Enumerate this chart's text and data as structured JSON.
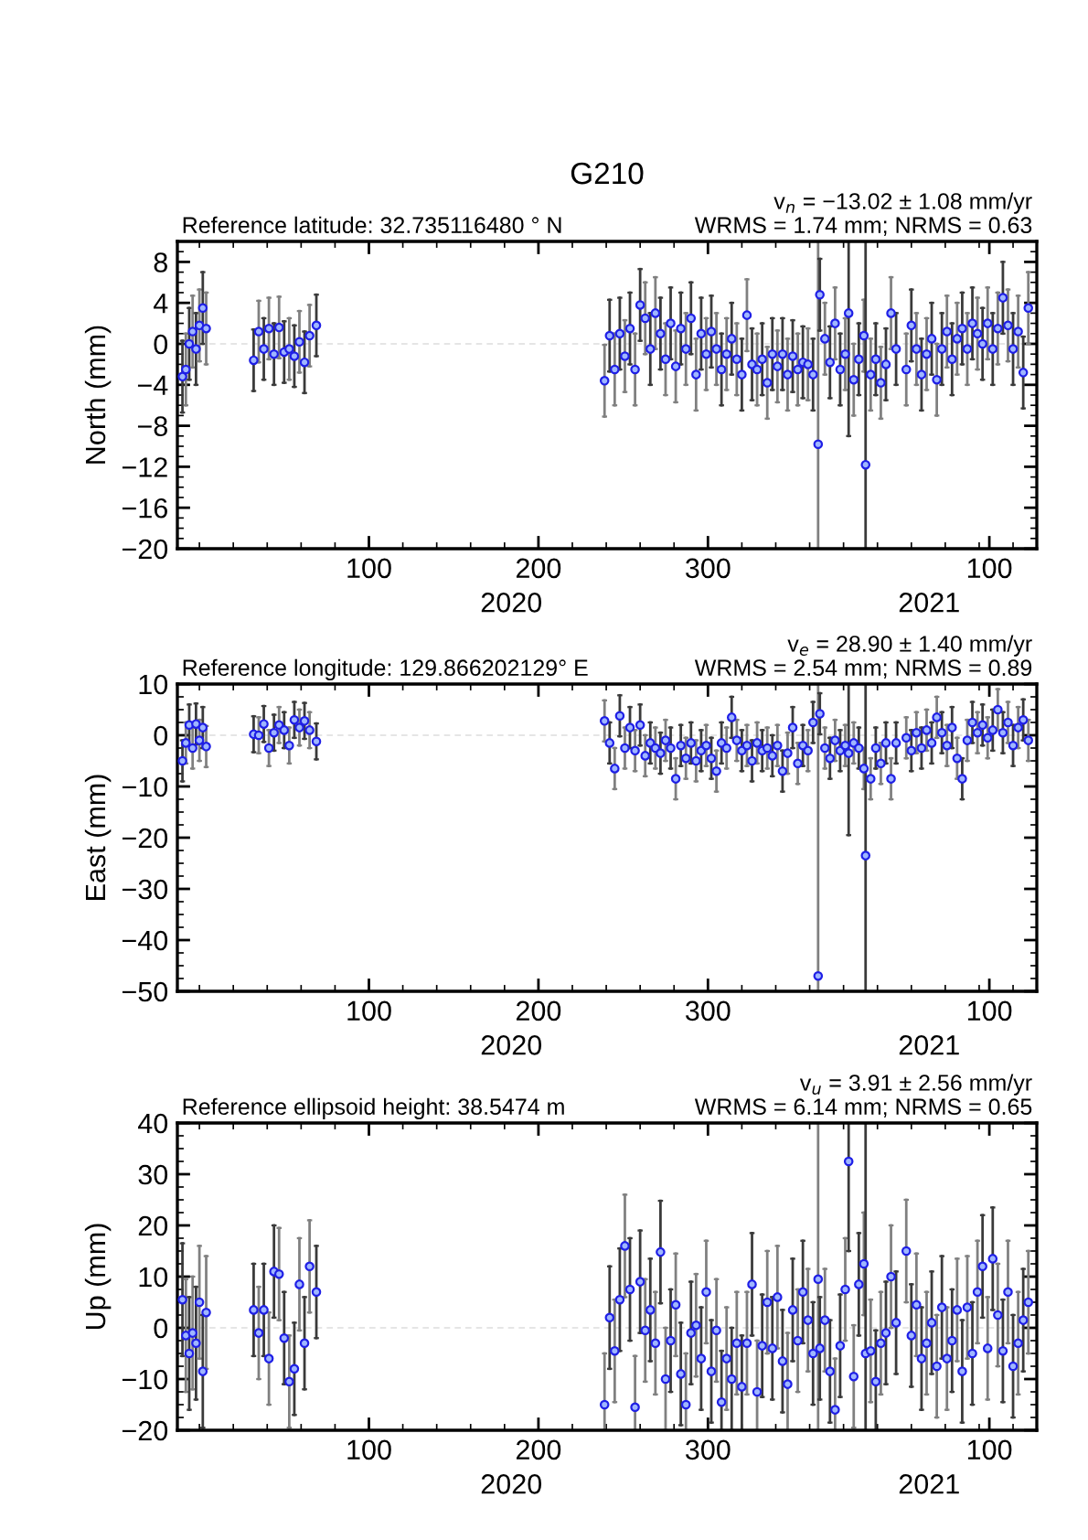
{
  "chart_data": [
    {
      "type": "scatter",
      "title": "G210",
      "subtitle": "Reference latitude: 32.735116480 ° N",
      "ylabel": "North (mm)",
      "marker": "circle",
      "annotations": [
        "v$_{n}$ = −13.02 ± 1.08 mm/yr",
        "WRMS = 1.74 mm; NRMS = 0.63",
        "2020",
        "2021"
      ],
      "xlim": [
        "2019-12-18",
        "2021-05-08"
      ],
      "xticks": [
        {
          "value": "2020-04-09",
          "label": "100"
        },
        {
          "value": "2020-07-18",
          "label": "200"
        },
        {
          "value": "2020-10-26",
          "label": "300"
        },
        {
          "value": "2021-04-10",
          "label": "100"
        }
      ],
      "ylim": [
        -20,
        10
      ],
      "yticks": [
        8,
        4,
        0,
        -4,
        -8,
        -12,
        -16,
        -20
      ],
      "ref_lines": [
        {
          "axis": "y",
          "value": 0,
          "color": "#dddddd",
          "line_style": "dashed"
        }
      ],
      "x": [
        "2019-12-21",
        "2019-12-23",
        "2019-12-25",
        "2019-12-27",
        "2019-12-29",
        "2019-12-31",
        "2020-01-02",
        "2020-01-04",
        "2020-02-01",
        "2020-02-04",
        "2020-02-07",
        "2020-02-10",
        "2020-02-13",
        "2020-02-16",
        "2020-02-19",
        "2020-02-22",
        "2020-02-25",
        "2020-02-28",
        "2020-03-02",
        "2020-03-05",
        "2020-03-09",
        "2020-08-26",
        "2020-08-29",
        "2020-09-01",
        "2020-09-04",
        "2020-09-07",
        "2020-09-10",
        "2020-09-13",
        "2020-09-16",
        "2020-09-19",
        "2020-09-22",
        "2020-09-25",
        "2020-09-28",
        "2020-10-01",
        "2020-10-04",
        "2020-10-07",
        "2020-10-10",
        "2020-10-13",
        "2020-10-16",
        "2020-10-19",
        "2020-10-22",
        "2020-10-25",
        "2020-10-28",
        "2020-10-31",
        "2020-11-03",
        "2020-11-06",
        "2020-11-09",
        "2020-11-12",
        "2020-11-15",
        "2020-11-18",
        "2020-11-21",
        "2020-11-24",
        "2020-11-27",
        "2020-11-30",
        "2020-12-03",
        "2020-12-06",
        "2020-12-09",
        "2020-12-12",
        "2020-12-15",
        "2020-12-18",
        "2020-12-21",
        "2020-12-24",
        "2020-12-27",
        "2020-12-30",
        "2020-12-31",
        "2021-01-03",
        "2021-01-06",
        "2021-01-09",
        "2021-01-12",
        "2021-01-15",
        "2021-01-17",
        "2021-01-20",
        "2021-01-23",
        "2021-01-26",
        "2021-01-27",
        "2021-01-30",
        "2021-02-02",
        "2021-02-05",
        "2021-02-08",
        "2021-02-11",
        "2021-02-14",
        "2021-02-20",
        "2021-02-23",
        "2021-02-26",
        "2021-03-01",
        "2021-03-04",
        "2021-03-07",
        "2021-03-10",
        "2021-03-13",
        "2021-03-16",
        "2021-03-19",
        "2021-03-22",
        "2021-03-25",
        "2021-03-28",
        "2021-03-31",
        "2021-04-03",
        "2021-04-06",
        "2021-04-09",
        "2021-04-12",
        "2021-04-15",
        "2021-04-18",
        "2021-04-21",
        "2021-04-24",
        "2021-04-27",
        "2021-04-30",
        "2021-05-03"
      ],
      "series": [
        {
          "color": "#1f1fe6",
          "values": [
            -3.2,
            -2.5,
            0,
            1.2,
            -0.5,
            1.8,
            3.5,
            1.5,
            -1.6,
            1.2,
            -0.5,
            1.5,
            -1.0,
            1.6,
            -0.8,
            -0.5,
            -1.2,
            0.2,
            -1.8,
            0.8,
            1.8,
            -3.6,
            0.8,
            -2.5,
            1.0,
            -1.2,
            1.5,
            -2.5,
            3.8,
            2.5,
            -0.5,
            3.0,
            1.0,
            -1.5,
            2.0,
            -2.2,
            1.5,
            -0.5,
            2.5,
            -3.0,
            1.0,
            -1.0,
            1.2,
            -0.5,
            -2.5,
            -1.0,
            0.5,
            -1.5,
            -3.0,
            2.8,
            -2.0,
            -2.5,
            -1.5,
            -3.8,
            -1.0,
            -2.2,
            -1.0,
            -3.0,
            -1.2,
            -2.5,
            -1.8,
            -2.0,
            -3.0,
            -9.8,
            4.8,
            0.5,
            -1.8,
            2.0,
            -2.5,
            -1.0,
            3.0,
            -3.5,
            -1.5,
            0.8,
            -11.8,
            -3.0,
            -1.5,
            -3.8,
            -2.0,
            3.0,
            -0.5,
            -2.5,
            1.8,
            -0.5,
            -3.0,
            -1.0,
            0.5,
            -3.5,
            -0.5,
            1.2,
            -1.5,
            0.5,
            1.5,
            -0.5,
            2.0,
            1.0,
            0.0,
            2.0,
            -0.5,
            1.5,
            4.5,
            1.8,
            -0.5,
            1.2,
            -2.8,
            3.5
          ],
          "errors": [
            3.5,
            3.5,
            3.5,
            3.5,
            3.5,
            3.5,
            3.5,
            3.5,
            3,
            3,
            3,
            3,
            3,
            3,
            3,
            3,
            3,
            3,
            3,
            3,
            3,
            3.5,
            3.5,
            3.5,
            3.5,
            3.5,
            3.5,
            3.5,
            3.5,
            3.5,
            3.5,
            3.5,
            3.5,
            3.5,
            3.5,
            3.5,
            3.5,
            3.5,
            3.5,
            3.5,
            3.5,
            3.5,
            3.5,
            3.5,
            3.5,
            3.5,
            3.5,
            3.5,
            3.5,
            3.5,
            3.5,
            3.5,
            3.5,
            3.5,
            3.5,
            3.5,
            3.5,
            3.5,
            3.5,
            3.5,
            3.5,
            3.5,
            3.5,
            [
              -20,
              10
            ],
            3.5,
            3.5,
            3.5,
            3.5,
            3.5,
            3.5,
            [
              -9,
              10
            ],
            3.5,
            3.5,
            3.5,
            [
              -20,
              10
            ],
            3.5,
            3.5,
            3.5,
            3.5,
            3.5,
            3.5,
            3.5,
            3.5,
            3.5,
            3.5,
            3.5,
            3.5,
            3.5,
            3.5,
            3.5,
            3.5,
            3.5,
            3.5,
            3.5,
            3.5,
            3.5,
            3.5,
            3.5,
            3.5,
            3.5,
            3.5,
            3.5,
            3.5,
            3.5,
            3.5,
            3.5
          ]
        }
      ]
    },
    {
      "type": "scatter",
      "subtitle": "Reference longitude: 129.866202129° E",
      "ylabel": "East (mm)",
      "marker": "circle",
      "annotations": [
        "v$_{e}$ = 28.90 ± 1.40 mm/yr",
        "WRMS = 2.54 mm; NRMS = 0.89",
        "2020",
        "2021"
      ],
      "xlim": [
        "2019-12-18",
        "2021-05-08"
      ],
      "xticks": [
        {
          "value": "2020-04-09",
          "label": "100"
        },
        {
          "value": "2020-07-18",
          "label": "200"
        },
        {
          "value": "2020-10-26",
          "label": "300"
        },
        {
          "value": "2021-04-10",
          "label": "100"
        }
      ],
      "ylim": [
        -50,
        10
      ],
      "yticks": [
        10,
        0,
        -10,
        -20,
        -30,
        -40,
        -50
      ],
      "ref_lines": [
        {
          "axis": "y",
          "value": 0,
          "color": "#dddddd",
          "line_style": "dashed"
        }
      ],
      "x": [
        "2019-12-21",
        "2019-12-23",
        "2019-12-25",
        "2019-12-27",
        "2019-12-29",
        "2019-12-31",
        "2020-01-02",
        "2020-01-04",
        "2020-02-01",
        "2020-02-04",
        "2020-02-07",
        "2020-02-10",
        "2020-02-13",
        "2020-02-16",
        "2020-02-19",
        "2020-02-22",
        "2020-02-25",
        "2020-02-28",
        "2020-03-02",
        "2020-03-05",
        "2020-03-09",
        "2020-08-26",
        "2020-08-29",
        "2020-09-01",
        "2020-09-04",
        "2020-09-07",
        "2020-09-10",
        "2020-09-13",
        "2020-09-16",
        "2020-09-19",
        "2020-09-22",
        "2020-09-25",
        "2020-09-28",
        "2020-10-01",
        "2020-10-04",
        "2020-10-07",
        "2020-10-10",
        "2020-10-13",
        "2020-10-16",
        "2020-10-19",
        "2020-10-22",
        "2020-10-25",
        "2020-10-28",
        "2020-10-31",
        "2020-11-03",
        "2020-11-06",
        "2020-11-09",
        "2020-11-12",
        "2020-11-15",
        "2020-11-18",
        "2020-11-21",
        "2020-11-24",
        "2020-11-27",
        "2020-11-30",
        "2020-12-03",
        "2020-12-06",
        "2020-12-09",
        "2020-12-12",
        "2020-12-15",
        "2020-12-18",
        "2020-12-21",
        "2020-12-24",
        "2020-12-27",
        "2020-12-30",
        "2020-12-31",
        "2021-01-03",
        "2021-01-06",
        "2021-01-09",
        "2021-01-12",
        "2021-01-15",
        "2021-01-17",
        "2021-01-20",
        "2021-01-23",
        "2021-01-26",
        "2021-01-27",
        "2021-01-30",
        "2021-02-02",
        "2021-02-05",
        "2021-02-08",
        "2021-02-11",
        "2021-02-14",
        "2021-02-20",
        "2021-02-23",
        "2021-02-26",
        "2021-03-01",
        "2021-03-04",
        "2021-03-07",
        "2021-03-10",
        "2021-03-13",
        "2021-03-16",
        "2021-03-19",
        "2021-03-22",
        "2021-03-25",
        "2021-03-28",
        "2021-03-31",
        "2021-04-03",
        "2021-04-06",
        "2021-04-09",
        "2021-04-12",
        "2021-04-15",
        "2021-04-18",
        "2021-04-21",
        "2021-04-24",
        "2021-04-27",
        "2021-04-30",
        "2021-05-03"
      ],
      "series": [
        {
          "color": "#1f1fe6",
          "values": [
            -5,
            -1.5,
            2,
            -2.5,
            2.2,
            -1,
            1.5,
            -2.2,
            0.2,
            0,
            2.2,
            -2.5,
            0.5,
            2.0,
            1.0,
            -2.0,
            3.0,
            1.5,
            2.8,
            1.0,
            -1.2,
            2.8,
            -1.5,
            -6.5,
            3.8,
            -2.5,
            1.5,
            -3.0,
            2.0,
            -4.0,
            -1.5,
            -2.5,
            -3.5,
            -1.0,
            -2.5,
            -8.5,
            -2.0,
            -4.5,
            -1.5,
            -5.0,
            -3.0,
            -2.0,
            -4.5,
            -7.0,
            -1.5,
            -2.5,
            3.5,
            -1.0,
            -3.0,
            -2.0,
            -5.0,
            -1.5,
            -3.0,
            -2.5,
            -4.0,
            -2.0,
            -7.0,
            -3.5,
            1.5,
            -5.5,
            -2.0,
            -3.0,
            2.5,
            -47,
            4.2,
            -2.5,
            -4.5,
            -1.0,
            -3.0,
            -2.0,
            -3.5,
            -1.5,
            -2.5,
            -6.5,
            -23.5,
            -8.5,
            -2.5,
            -5.5,
            -1.5,
            -8.5,
            -1.5,
            -0.5,
            -3.0,
            0.5,
            -2.5,
            1.0,
            -1.5,
            3.5,
            0.5,
            -2.0,
            1.5,
            -4.5,
            -8.5,
            -1.0,
            2.5,
            0.5,
            2.0,
            -0.5,
            1.0,
            5.0,
            0.5,
            2.5,
            -2.0,
            1.5,
            3.0,
            -1.0
          ],
          "errors": [
            4,
            4,
            4,
            4,
            4,
            4,
            4,
            4,
            3.5,
            3.5,
            3.5,
            3.5,
            3.5,
            3.5,
            3.5,
            3.5,
            3.5,
            3.5,
            3.5,
            3.5,
            3.5,
            4,
            4,
            4,
            4,
            4,
            4,
            4,
            4,
            4,
            4,
            4,
            4,
            4,
            4,
            4,
            4,
            4,
            4,
            4,
            4,
            4,
            4,
            4,
            4,
            4,
            4,
            4,
            4,
            4,
            4,
            4,
            4,
            4,
            4,
            4,
            4,
            4,
            4,
            4,
            4,
            4,
            4,
            [
              -50,
              10
            ],
            4,
            4,
            4,
            4,
            4,
            4,
            [
              -19.5,
              10
            ],
            4,
            4,
            4,
            [
              -50,
              10
            ],
            4,
            4,
            4,
            4,
            4,
            4,
            4,
            4,
            4,
            4,
            4,
            4,
            4,
            4,
            4,
            4,
            4,
            4,
            4,
            4,
            4,
            4,
            4,
            4,
            4,
            4,
            4,
            4,
            4,
            4,
            4
          ]
        }
      ]
    },
    {
      "type": "scatter",
      "subtitle": "Reference ellipsoid height: 38.5474 m",
      "ylabel": "Up (mm)",
      "marker": "circle",
      "annotations": [
        "v$_{u}$ = 3.91 ± 2.56 mm/yr",
        "WRMS = 6.14 mm; NRMS = 0.65",
        "2020",
        "2021"
      ],
      "xlim": [
        "2019-12-18",
        "2021-05-08"
      ],
      "xticks": [
        {
          "value": "2020-04-09",
          "label": "100"
        },
        {
          "value": "2020-07-18",
          "label": "200"
        },
        {
          "value": "2020-10-26",
          "label": "300"
        },
        {
          "value": "2021-04-10",
          "label": "100"
        }
      ],
      "ylim": [
        -20,
        40
      ],
      "yticks": [
        40,
        30,
        20,
        10,
        0,
        -10,
        -20
      ],
      "ref_lines": [
        {
          "axis": "y",
          "value": 0,
          "color": "#dddddd",
          "line_style": "dashed"
        }
      ],
      "x": [
        "2019-12-21",
        "2019-12-23",
        "2019-12-25",
        "2019-12-27",
        "2019-12-29",
        "2019-12-31",
        "2020-01-02",
        "2020-01-04",
        "2020-02-01",
        "2020-02-04",
        "2020-02-07",
        "2020-02-10",
        "2020-02-13",
        "2020-02-16",
        "2020-02-19",
        "2020-02-22",
        "2020-02-25",
        "2020-02-28",
        "2020-03-02",
        "2020-03-05",
        "2020-03-09",
        "2020-08-26",
        "2020-08-29",
        "2020-09-01",
        "2020-09-04",
        "2020-09-07",
        "2020-09-10",
        "2020-09-13",
        "2020-09-16",
        "2020-09-19",
        "2020-09-22",
        "2020-09-25",
        "2020-09-28",
        "2020-10-01",
        "2020-10-04",
        "2020-10-07",
        "2020-10-10",
        "2020-10-13",
        "2020-10-16",
        "2020-10-19",
        "2020-10-22",
        "2020-10-25",
        "2020-10-28",
        "2020-10-31",
        "2020-11-03",
        "2020-11-06",
        "2020-11-09",
        "2020-11-12",
        "2020-11-15",
        "2020-11-18",
        "2020-11-21",
        "2020-11-24",
        "2020-11-27",
        "2020-11-30",
        "2020-12-03",
        "2020-12-06",
        "2020-12-09",
        "2020-12-12",
        "2020-12-15",
        "2020-12-18",
        "2020-12-21",
        "2020-12-24",
        "2020-12-27",
        "2020-12-30",
        "2020-12-31",
        "2021-01-03",
        "2021-01-06",
        "2021-01-09",
        "2021-01-12",
        "2021-01-15",
        "2021-01-17",
        "2021-01-20",
        "2021-01-23",
        "2021-01-26",
        "2021-01-27",
        "2021-01-30",
        "2021-02-02",
        "2021-02-05",
        "2021-02-08",
        "2021-02-11",
        "2021-02-14",
        "2021-02-20",
        "2021-02-23",
        "2021-02-26",
        "2021-03-01",
        "2021-03-04",
        "2021-03-07",
        "2021-03-10",
        "2021-03-13",
        "2021-03-16",
        "2021-03-19",
        "2021-03-22",
        "2021-03-25",
        "2021-03-28",
        "2021-03-31",
        "2021-04-03",
        "2021-04-06",
        "2021-04-09",
        "2021-04-12",
        "2021-04-15",
        "2021-04-18",
        "2021-04-21",
        "2021-04-24",
        "2021-04-27",
        "2021-04-30",
        "2021-05-03"
      ],
      "series": [
        {
          "color": "#1f1fe6",
          "values": [
            5.5,
            -1.5,
            -5.0,
            -1.0,
            -3.0,
            5.0,
            -8.5,
            3.0,
            3.5,
            -1.0,
            3.5,
            -6.0,
            11.0,
            10.5,
            -2.0,
            -10.5,
            -8.0,
            8.5,
            -3.0,
            12.0,
            7.0,
            -15,
            2.0,
            -4.5,
            5.5,
            16,
            7.5,
            -15.5,
            9.0,
            -0.5,
            3.5,
            -3.0,
            14.8,
            -10,
            -2.5,
            4.5,
            -9,
            -15,
            -1.0,
            0.5,
            -6,
            7.0,
            -8.5,
            -0.5,
            -14.5,
            -6,
            -10,
            -3,
            -11.5,
            -3,
            8.5,
            -12.5,
            -3.5,
            5.0,
            -4,
            6.0,
            -6.5,
            -11,
            3.5,
            -2.5,
            7.0,
            1.5,
            -5,
            9.5,
            -4.0,
            1.5,
            -8.5,
            -16,
            -3.5,
            7.5,
            32.5,
            -9.5,
            8.5,
            12.5,
            -5,
            -4.5,
            -10.5,
            -3,
            -1,
            10,
            1.0,
            15,
            -1.5,
            4.5,
            -6,
            -3,
            1.0,
            -7.5,
            4.0,
            -6,
            -2.5,
            3.5,
            -8.5,
            4.0,
            -5,
            7.0,
            12.0,
            -4,
            13.5,
            2.5,
            -4.5,
            7.0,
            -7.5,
            -3,
            1.5,
            5.0
          ],
          "errors": [
            11,
            11,
            11,
            11,
            11,
            11,
            11,
            11,
            9,
            9,
            9,
            9,
            9,
            9,
            9,
            9,
            9,
            9,
            9,
            9,
            9,
            [
              -20,
              -5
            ],
            10,
            10,
            10,
            10,
            10,
            [
              -20,
              -5.5
            ],
            10,
            10,
            10,
            10,
            10,
            10,
            10,
            10,
            10,
            [
              -20,
              -5
            ],
            10,
            10,
            10,
            10,
            10,
            10,
            [
              -20,
              -4.5
            ],
            10,
            10,
            10,
            [
              -20,
              -1.5
            ],
            10,
            10,
            [
              -20,
              -2.5
            ],
            10,
            10,
            10,
            10,
            10,
            [
              -20,
              -1
            ],
            10,
            10,
            10,
            10,
            10,
            [
              -20,
              40
            ],
            10,
            10,
            10,
            [
              -20,
              -6
            ],
            10,
            10,
            [
              15,
              40
            ],
            10,
            10,
            10,
            [
              -20,
              40
            ],
            10,
            [
              -20,
              -0.5
            ],
            10,
            10,
            10,
            10,
            10,
            10,
            10,
            10,
            10,
            10,
            10,
            10,
            10,
            10,
            10,
            10,
            10,
            10,
            10,
            10,
            10,
            10,
            10,
            10,
            10,
            10,
            10,
            10,
            10
          ]
        }
      ]
    }
  ]
}
